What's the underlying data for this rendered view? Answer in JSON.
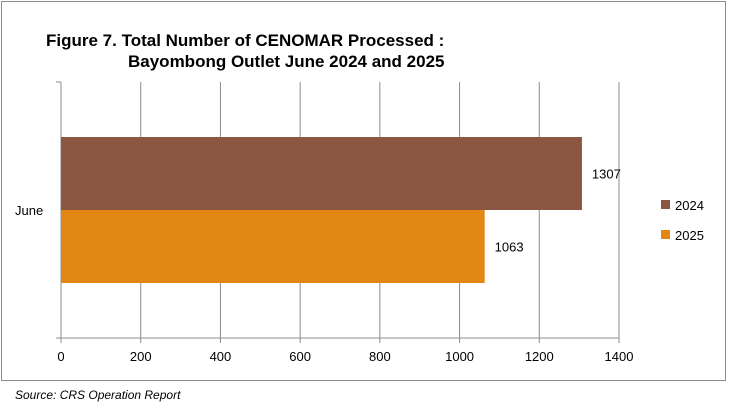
{
  "chart_data": {
    "type": "bar",
    "orientation": "horizontal",
    "title_line1": "Figure 7. Total Number of CENOMAR Processed :",
    "title_line2": "Bayombong Outlet June 2024 and 2025",
    "categories": [
      "June"
    ],
    "series": [
      {
        "name": "2024",
        "values": [
          1307
        ],
        "color": "#8B5742"
      },
      {
        "name": "2025",
        "values": [
          1063
        ],
        "color": "#E28714"
      }
    ],
    "data_labels": [
      "1307",
      "1063"
    ],
    "xlim": [
      0,
      1400
    ],
    "x_ticks": [
      0,
      200,
      400,
      600,
      800,
      1000,
      1200,
      1400
    ],
    "x_tick_labels": [
      "0",
      "200",
      "400",
      "600",
      "800",
      "1000",
      "1200",
      "1400"
    ],
    "grid": true,
    "legend_position": "right"
  },
  "source": "Source: CRS Operation Report"
}
